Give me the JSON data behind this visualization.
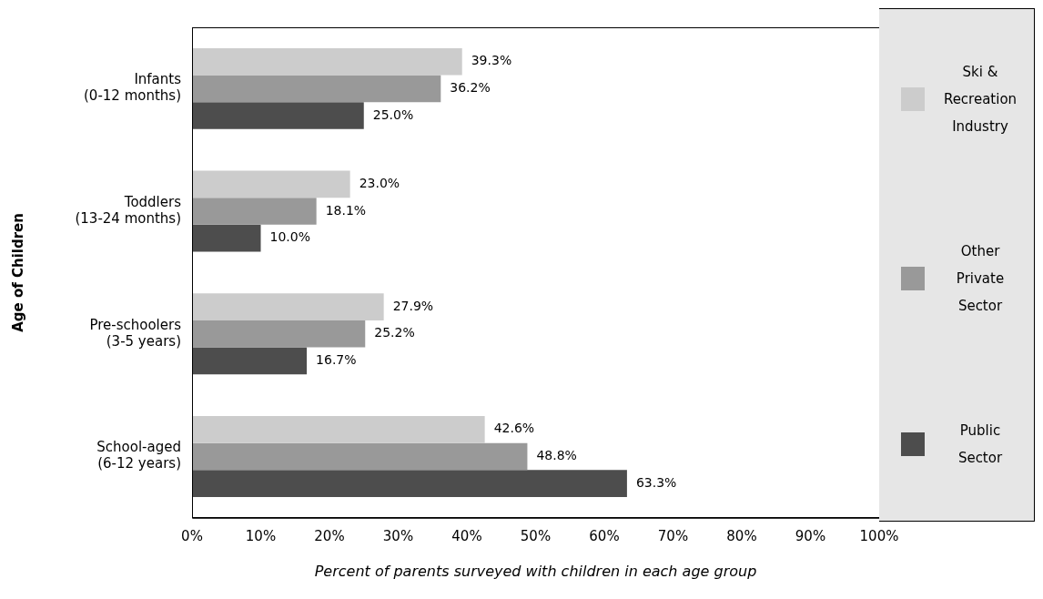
{
  "chart_data": {
    "type": "bar",
    "orientation": "horizontal",
    "categories": [
      "Infants (0-12 months)",
      "Toddlers (13-24 months)",
      "Pre-schoolers (3-5 years)",
      "School-aged (6-12 years)"
    ],
    "series": [
      {
        "name": "Ski & Recreation Industry",
        "color": "#cccccc",
        "values": [
          39.3,
          23.0,
          27.9,
          42.6
        ],
        "value_labels": [
          "39.3%",
          "23.0%",
          "27.9%",
          "42.6%"
        ]
      },
      {
        "name": "Other Private Sector",
        "color": "#999999",
        "values": [
          36.2,
          18.1,
          25.2,
          48.8
        ],
        "value_labels": [
          "36.2%",
          "18.1%",
          "25.2%",
          "48.8%"
        ]
      },
      {
        "name": "Public Sector",
        "color": "#4d4d4d",
        "values": [
          25.0,
          10.0,
          16.7,
          63.3
        ],
        "value_labels": [
          "25.0%",
          "10.0%",
          "16.7%",
          "63.3%"
        ]
      }
    ],
    "xlim": [
      0,
      100
    ],
    "xticks": [
      {
        "value": 0,
        "label": "0%"
      },
      {
        "value": 10,
        "label": "10%"
      },
      {
        "value": 20,
        "label": "20%"
      },
      {
        "value": 30,
        "label": "30%"
      },
      {
        "value": 40,
        "label": "40%"
      },
      {
        "value": 50,
        "label": "50%"
      },
      {
        "value": 60,
        "label": "60%"
      },
      {
        "value": 70,
        "label": "70%"
      },
      {
        "value": 80,
        "label": "80%"
      },
      {
        "value": 90,
        "label": "90%"
      },
      {
        "value": 100,
        "label": "100%"
      }
    ],
    "xlabel": "Percent of parents surveyed with children in each age group",
    "ylabel": "Age of Children",
    "grid": false,
    "legend": "right"
  }
}
